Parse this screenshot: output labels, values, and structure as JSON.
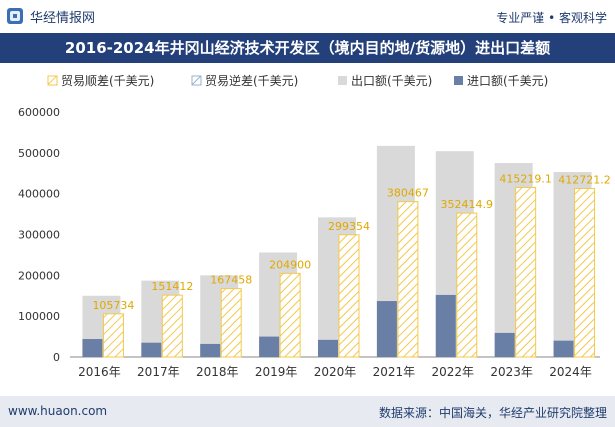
{
  "header": {
    "brand": "华经情报网",
    "slogan": "专业严谨 • 客观科学"
  },
  "chart_data": {
    "type": "bar",
    "title": "2016-2024年井冈山经济技术开发区（境内目的地/货源地）进出口差额",
    "categories": [
      "2016年",
      "2017年",
      "2018年",
      "2019年",
      "2020年",
      "2021年",
      "2022年",
      "2023年",
      "2024年"
    ],
    "series": [
      {
        "name": "贸易顺差(千美元)",
        "values": [
          105734,
          151412,
          167458,
          204900,
          299354,
          380467,
          352414.9,
          415219.1,
          412721.2
        ],
        "color": "#f3c84b"
      },
      {
        "name": "贸易逆差(千美元)",
        "values": [
          0,
          0,
          0,
          0,
          0,
          0,
          0,
          0,
          0
        ],
        "color": "#9ab0cc"
      },
      {
        "name": "出口额(千美元)",
        "values": [
          150000,
          187000,
          200000,
          256000,
          342000,
          517000,
          504000,
          475000,
          453000
        ],
        "color": "#d9d9d9"
      },
      {
        "name": "进口额(千美元)",
        "values": [
          44000,
          35000,
          32000,
          50000,
          42000,
          137000,
          152000,
          59000,
          40000
        ],
        "color": "#6a7fa6"
      }
    ],
    "labels": [
      "105734",
      "151412",
      "167458",
      "204900",
      "299354",
      "380467",
      "352414.9",
      "415219.1",
      "412721.2"
    ],
    "yticks": [
      "0",
      "100000",
      "200000",
      "300000",
      "400000",
      "500000",
      "600000"
    ],
    "ylim": [
      0,
      600000
    ],
    "legend_position": "top",
    "grid": false
  },
  "footer": {
    "url": "www.huaon.com",
    "source": "数据来源：中国海关，华经产业研究院整理"
  }
}
